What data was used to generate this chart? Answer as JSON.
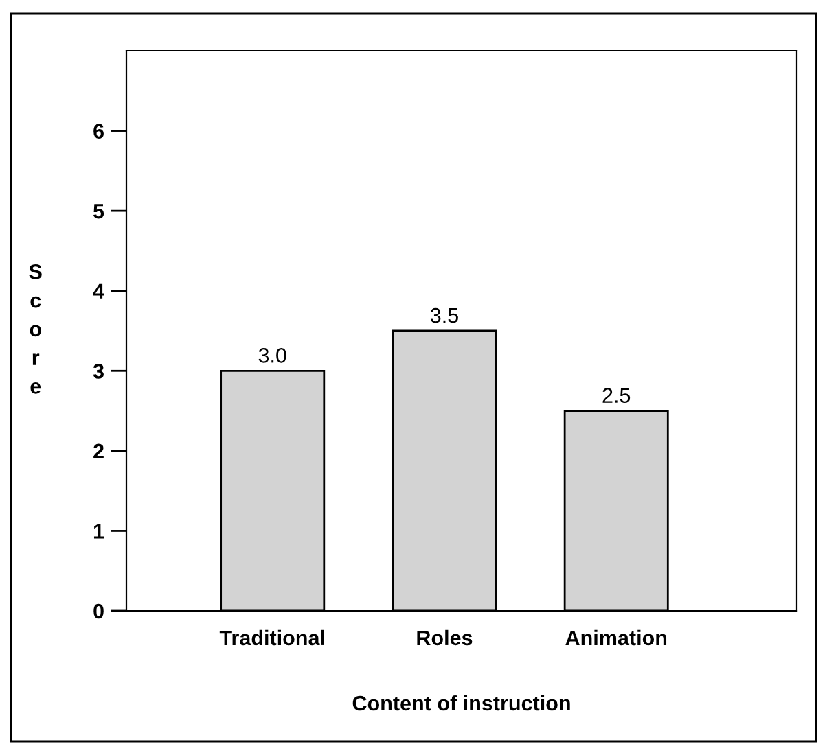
{
  "chart_data": {
    "type": "bar",
    "xlabel": "Content of instruction",
    "ylabel": "Score",
    "categories": [
      "Traditional",
      "Roles",
      "Animation"
    ],
    "values": [
      3.0,
      3.5,
      2.5
    ],
    "color": "#d3d3d3",
    "value_labels": [
      "3.0",
      "3.5",
      "2.5"
    ],
    "ylim": [
      0,
      7
    ],
    "yticks": [
      0,
      1,
      2,
      3,
      4,
      5,
      6
    ],
    "grid": false,
    "legend": false
  }
}
